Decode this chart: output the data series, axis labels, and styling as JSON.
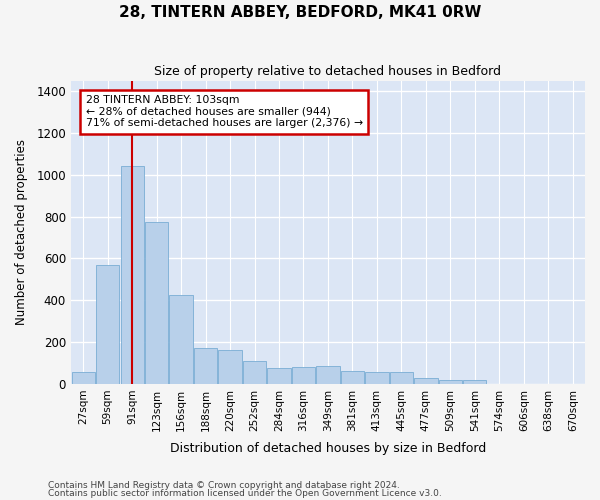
{
  "title": "28, TINTERN ABBEY, BEDFORD, MK41 0RW",
  "subtitle": "Size of property relative to detached houses in Bedford",
  "xlabel": "Distribution of detached houses by size in Bedford",
  "ylabel": "Number of detached properties",
  "categories": [
    "27sqm",
    "59sqm",
    "91sqm",
    "123sqm",
    "156sqm",
    "188sqm",
    "220sqm",
    "252sqm",
    "284sqm",
    "316sqm",
    "349sqm",
    "381sqm",
    "413sqm",
    "445sqm",
    "477sqm",
    "509sqm",
    "541sqm",
    "574sqm",
    "606sqm",
    "638sqm",
    "670sqm"
  ],
  "values": [
    55,
    570,
    1040,
    775,
    425,
    170,
    160,
    110,
    75,
    80,
    85,
    60,
    55,
    55,
    28,
    20,
    18,
    0,
    0,
    0,
    0
  ],
  "bar_color": "#b8d0ea",
  "bar_edge_color": "#7aadd4",
  "background_color": "#dce6f5",
  "grid_color": "#ffffff",
  "red_line_index": 2,
  "annotation_text": "28 TINTERN ABBEY: 103sqm\n← 28% of detached houses are smaller (944)\n71% of semi-detached houses are larger (2,376) →",
  "annotation_box_facecolor": "#ffffff",
  "annotation_box_edgecolor": "#cc0000",
  "ylim": [
    0,
    1450
  ],
  "yticks": [
    0,
    200,
    400,
    600,
    800,
    1000,
    1200,
    1400
  ],
  "fig_facecolor": "#f5f5f5",
  "footer1": "Contains HM Land Registry data © Crown copyright and database right 2024.",
  "footer2": "Contains public sector information licensed under the Open Government Licence v3.0."
}
